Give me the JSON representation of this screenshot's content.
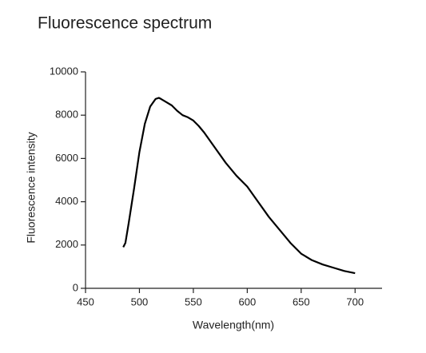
{
  "chart_data": {
    "type": "line",
    "title": "Fluorescence spectrum",
    "x_label": "Wavelength(nm)",
    "y_label": "Fluorescence intensity",
    "series": [
      {
        "color": "#000000",
        "x": [
          485,
          487,
          490,
          495,
          500,
          505,
          510,
          515,
          518,
          520,
          525,
          530,
          535,
          540,
          545,
          550,
          555,
          560,
          570,
          580,
          590,
          600,
          610,
          620,
          630,
          640,
          650,
          660,
          670,
          680,
          690,
          700
        ],
        "values": [
          1900,
          2100,
          3000,
          4600,
          6300,
          7600,
          8400,
          8750,
          8800,
          8750,
          8600,
          8450,
          8200,
          8000,
          7900,
          7750,
          7500,
          7200,
          6500,
          5800,
          5200,
          4700,
          4000,
          3300,
          2700,
          2100,
          1600,
          1300,
          1100,
          950,
          800,
          700
        ]
      }
    ],
    "xlim": [
      450,
      725
    ],
    "xticks": [
      450,
      500,
      550,
      600,
      650,
      700
    ],
    "ylim": [
      0,
      10000
    ],
    "yticks": [
      0,
      2000,
      4000,
      6000,
      8000,
      10000
    ]
  }
}
